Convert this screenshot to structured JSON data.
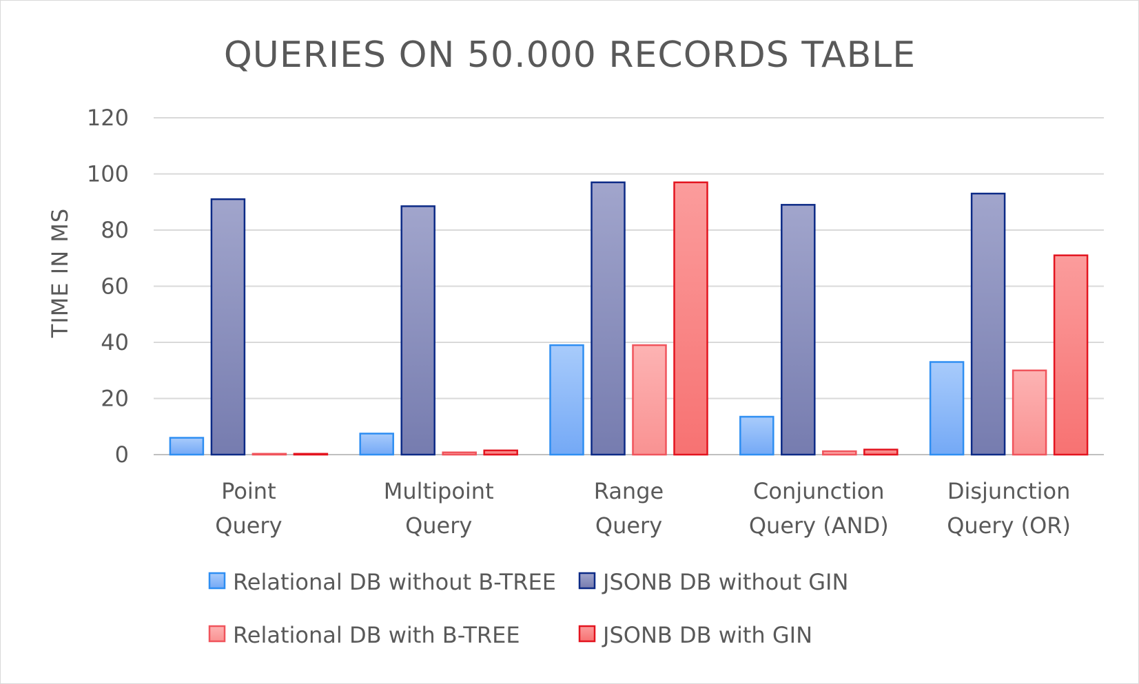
{
  "chart_data": {
    "type": "bar",
    "title": "QUERIES ON 50.000 RECORDS TABLE",
    "xlabel": "",
    "ylabel": "TIME IN MS",
    "ylim": [
      0,
      120
    ],
    "yticks": [
      0,
      20,
      40,
      60,
      80,
      100,
      120
    ],
    "grid": true,
    "legend_position": "bottom",
    "categories": [
      [
        "Point",
        "Query"
      ],
      [
        "Multipoint",
        "Query"
      ],
      [
        "Range",
        "Query"
      ],
      [
        "Conjunction",
        "Query (AND)"
      ],
      [
        "Disjunction",
        "Query (OR)"
      ]
    ],
    "series": [
      {
        "name": "Relational DB without B-TREE",
        "values": [
          6,
          7.5,
          39,
          13.5,
          33
        ],
        "fill": "#8fb8f5",
        "stroke": "#2e8ef2"
      },
      {
        "name": "JSONB DB without GIN",
        "values": [
          91,
          88.5,
          97,
          89,
          93
        ],
        "fill": "#8e93c0",
        "stroke": "#0c2a86"
      },
      {
        "name": "Relational DB with B-TREE",
        "values": [
          0.3,
          0.8,
          39,
          1.2,
          30
        ],
        "fill": "#fba2a2",
        "stroke": "#f0545c"
      },
      {
        "name": "JSONB DB with GIN",
        "values": [
          0.3,
          1.5,
          97,
          1.8,
          71
        ],
        "fill": "#f98585",
        "stroke": "#e3141f"
      }
    ]
  }
}
